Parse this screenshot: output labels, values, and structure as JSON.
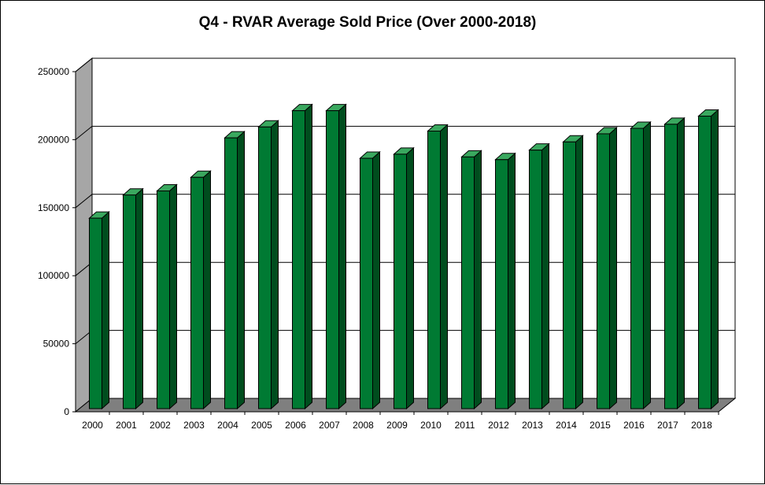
{
  "chart_data": {
    "type": "bar",
    "title": "Q4 - RVAR Average Sold Price (Over 2000-2018)",
    "xlabel": "",
    "ylabel": "",
    "categories": [
      "2000",
      "2001",
      "2002",
      "2003",
      "2004",
      "2005",
      "2006",
      "2007",
      "2008",
      "2009",
      "2010",
      "2011",
      "2012",
      "2013",
      "2014",
      "2015",
      "2016",
      "2017",
      "2018"
    ],
    "values": [
      140000,
      157000,
      160000,
      170000,
      199000,
      207000,
      219000,
      219000,
      184000,
      187000,
      204000,
      185000,
      183000,
      190000,
      196000,
      202000,
      206000,
      209000,
      215000
    ],
    "ylim": [
      0,
      250000
    ],
    "yticks": [
      "0",
      "50000",
      "100000",
      "150000",
      "200000",
      "250000"
    ],
    "grid": true,
    "legend": "none",
    "three_d": true,
    "colors": {
      "bar_front": "#007a33",
      "bar_side": "#004d1e",
      "bar_top": "#3aa85f",
      "wall": "#ffffff",
      "side_wall": "#a6a6a6",
      "floor": "#7f7f7f"
    }
  }
}
